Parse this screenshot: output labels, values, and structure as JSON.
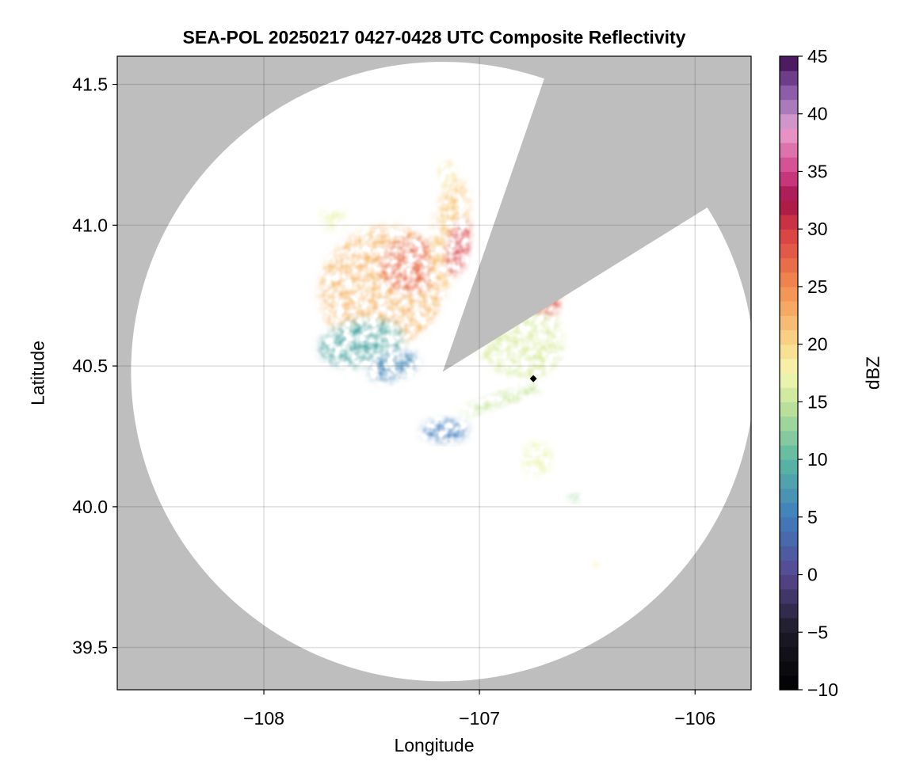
{
  "chart_data": {
    "type": "heatmap",
    "title": "SEA-POL 20250217 0427-0428 UTC Composite Reflectivity",
    "xlabel": "Longitude",
    "ylabel": "Latitude",
    "xlim": [
      -108.68,
      -105.74
    ],
    "ylim": [
      39.35,
      41.6
    ],
    "xticks": [
      -108,
      -107,
      -106
    ],
    "xtick_labels": [
      "−108",
      "−107",
      "−106"
    ],
    "yticks": [
      39.5,
      40.0,
      40.5,
      41.0,
      41.5
    ],
    "ytick_labels": [
      "39.5",
      "40.0",
      "40.5",
      "41.0",
      "41.5"
    ],
    "grid": true,
    "background_color": "#bebebe",
    "coverage_color": "#ffffff",
    "radar": {
      "center_lon": -107.17,
      "center_lat": 40.48,
      "range_lat_deg": 1.1,
      "blocked_sectors_deg_from_north": [
        [
          19,
          58
        ]
      ]
    },
    "marker": {
      "lon": -106.75,
      "lat": 40.455,
      "shape": "diamond",
      "color": "#000000"
    },
    "colorbar": {
      "label": "dBZ",
      "min": -10,
      "max": 45,
      "step": 1.25,
      "ticks": [
        -10,
        -5,
        0,
        5,
        10,
        15,
        20,
        25,
        30,
        35,
        40,
        45
      ],
      "tick_labels": [
        "−10",
        "−5",
        "0",
        "5",
        "10",
        "15",
        "20",
        "25",
        "30",
        "35",
        "40",
        "45"
      ],
      "colormap_stops": [
        [
          -10,
          "#000000"
        ],
        [
          -5,
          "#1c1a26"
        ],
        [
          0,
          "#56478f"
        ],
        [
          5,
          "#3f7dbd"
        ],
        [
          10,
          "#5cb8a2"
        ],
        [
          15,
          "#c6e69a"
        ],
        [
          17.5,
          "#f6f7b2"
        ],
        [
          20,
          "#f9d88a"
        ],
        [
          25,
          "#f28c4e"
        ],
        [
          30,
          "#d83b43"
        ],
        [
          32.5,
          "#a1124a"
        ],
        [
          35,
          "#d1438a"
        ],
        [
          38.75,
          "#eba2cd"
        ],
        [
          40,
          "#b78ac4"
        ],
        [
          42.5,
          "#7e4e9e"
        ],
        [
          45,
          "#3b0a4e"
        ]
      ]
    },
    "echo_regions": [
      {
        "name": "northwest main cluster",
        "lon": -107.45,
        "lat": 40.78,
        "rlon": 0.3,
        "rlat": 0.21,
        "rot": -30,
        "dbz": 22
      },
      {
        "name": "northwest core",
        "lon": -107.32,
        "lat": 40.86,
        "rlon": 0.14,
        "rlat": 0.1,
        "rot": -20,
        "dbz": 27
      },
      {
        "name": "northern band",
        "lon": -107.14,
        "lat": 40.97,
        "rlon": 0.08,
        "rlat": 0.2,
        "rot": 10,
        "dbz": 21
      },
      {
        "name": "northern core",
        "lon": -107.1,
        "lat": 40.92,
        "rlon": 0.05,
        "rlat": 0.1,
        "rot": 10,
        "dbz": 30
      },
      {
        "name": "western low echoes",
        "lon": -107.55,
        "lat": 40.58,
        "rlon": 0.2,
        "rlat": 0.08,
        "rot": -10,
        "dbz": 9
      },
      {
        "name": "southwest edge",
        "lon": -107.4,
        "lat": 40.5,
        "rlon": 0.12,
        "rlat": 0.05,
        "rot": -15,
        "dbz": 6
      },
      {
        "name": "far northwest cell",
        "lon": -107.68,
        "lat": 41.02,
        "rlon": 0.06,
        "rlat": 0.04,
        "rot": 0,
        "dbz": 17
      },
      {
        "name": "northwest small cell",
        "lon": -107.15,
        "lat": 41.18,
        "rlon": 0.04,
        "rlat": 0.05,
        "rot": 0,
        "dbz": 19
      },
      {
        "name": "northeast wedge",
        "lon": -106.82,
        "lat": 40.6,
        "rlon": 0.22,
        "rlat": 0.14,
        "rot": 30,
        "dbz": 16
      },
      {
        "name": "northeast core",
        "lon": -106.69,
        "lat": 40.73,
        "rlon": 0.07,
        "rlat": 0.05,
        "rot": 35,
        "dbz": 28
      },
      {
        "name": "east-southeast band",
        "lon": -106.9,
        "lat": 40.38,
        "rlon": 0.2,
        "rlat": 0.025,
        "rot": -18,
        "dbz": 15
      },
      {
        "name": "south-southwest cell",
        "lon": -107.16,
        "lat": 40.27,
        "rlon": 0.11,
        "rlat": 0.04,
        "rot": 0,
        "dbz": 5
      },
      {
        "name": "southeast cell",
        "lon": -106.73,
        "lat": 40.17,
        "rlon": 0.07,
        "rlat": 0.06,
        "rot": 0,
        "dbz": 17
      },
      {
        "name": "southeast small cell",
        "lon": -106.56,
        "lat": 40.03,
        "rlon": 0.03,
        "rlat": 0.015,
        "rot": 0,
        "dbz": 13
      },
      {
        "name": "far southeast cell",
        "lon": -106.45,
        "lat": 39.8,
        "rlon": 0.02,
        "rlat": 0.02,
        "rot": 0,
        "dbz": 18
      }
    ]
  }
}
